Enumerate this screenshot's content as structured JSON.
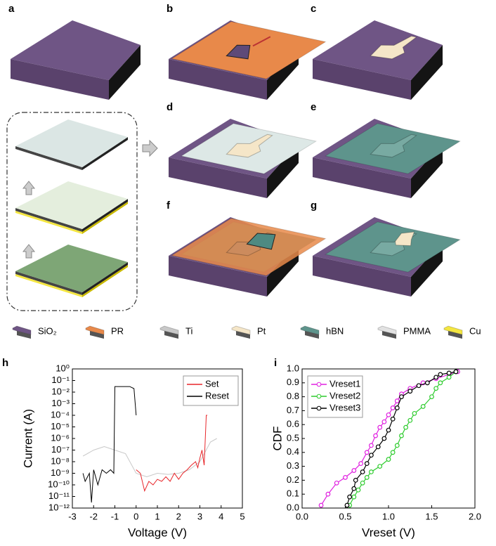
{
  "panels": {
    "labels": [
      "a",
      "b",
      "c",
      "d",
      "e",
      "f",
      "g"
    ]
  },
  "legend": [
    {
      "label": "SiO₂",
      "color": "#6f5585"
    },
    {
      "label": "PR",
      "color": "#e8894a"
    },
    {
      "label": "Ti",
      "color": "#c8c8c8"
    },
    {
      "label": "Pt",
      "color": "#f5e6c8"
    },
    {
      "label": "hBN",
      "color": "#5e948c"
    },
    {
      "label": "PMMA",
      "color": "#e2e2e2"
    },
    {
      "label": "Cu",
      "color": "#f4e640"
    }
  ],
  "chart_data": [
    {
      "type": "line",
      "panel": "h",
      "x_label": "Voltage (V)",
      "y_label": "Current (A)",
      "log_y": true,
      "legend": "upper right",
      "xlim": [
        -3,
        5
      ],
      "xticks": [
        -3,
        -2,
        -1,
        0,
        1,
        2,
        3,
        4,
        5
      ],
      "ylim": [
        1e-12,
        1
      ],
      "yticks": [
        {
          "value": 1e-12,
          "label": "10⁻¹²"
        },
        {
          "value": 1e-11,
          "label": "10⁻¹¹"
        },
        {
          "value": 1e-10,
          "label": "10⁻¹⁰"
        },
        {
          "value": 1e-09,
          "label": "10⁻⁹"
        },
        {
          "value": 1e-08,
          "label": "10⁻⁸"
        },
        {
          "value": 1e-07,
          "label": "10⁻⁷"
        },
        {
          "value": 1e-06,
          "label": "10⁻⁶"
        },
        {
          "value": 1e-05,
          "label": "10⁻⁵"
        },
        {
          "value": 0.0001,
          "label": "10⁻⁴"
        },
        {
          "value": 0.001,
          "label": "10⁻³"
        },
        {
          "value": 0.01,
          "label": "10⁻²"
        },
        {
          "value": 0.1,
          "label": "10⁻¹"
        },
        {
          "value": 1,
          "label": "10⁰"
        }
      ],
      "series": [
        {
          "color": "#c8c8c8",
          "x": [
            -2.5,
            -2,
            -1.5,
            -1,
            -0.5,
            0,
            0.5,
            1,
            1.5,
            2,
            2.5,
            3,
            3.5,
            3.8
          ],
          "values": [
            3e-08,
            1e-07,
            2e-07,
            1e-07,
            5e-08,
            1e-09,
            5e-10,
            1e-09,
            8e-10,
            1e-09,
            2e-09,
            1e-08,
            5e-07,
            1e-06
          ]
        },
        {
          "name": "Set",
          "color": "#e8262a",
          "x": [
            0,
            0.2,
            0.4,
            0.6,
            0.8,
            1,
            1.2,
            1.4,
            1.6,
            1.8,
            2,
            2.2,
            2.4,
            2.6,
            2.8,
            2.9,
            3,
            3.1,
            3.2,
            3.3,
            3.35
          ],
          "values": [
            2e-09,
            1e-09,
            3e-11,
            2e-10,
            1e-10,
            3e-10,
            2e-10,
            5e-10,
            2e-10,
            1e-09,
            3e-10,
            1e-09,
            2e-09,
            5e-09,
            1e-08,
            3e-09,
            2e-08,
            1e-07,
            5e-09,
            0.0001,
            0.0001
          ]
        },
        {
          "name": "Reset",
          "color": "#000000",
          "x": [
            0,
            -0.1,
            -0.3,
            -0.5,
            -0.7,
            -0.9,
            -1,
            -1.05,
            -1.2,
            -1.4,
            -1.6,
            -1.8,
            -2,
            -2.1,
            -2.2,
            -2.4,
            -2.5
          ],
          "values": [
            0.0001,
            0.02,
            0.03,
            0.03,
            0.03,
            0.03,
            0.03,
            1e-09,
            2e-09,
            1e-09,
            2e-09,
            1e-10,
            2e-09,
            3e-12,
            1e-09,
            2e-10,
            1e-09
          ]
        }
      ]
    },
    {
      "type": "line",
      "panel": "i",
      "x_label": "Vreset (V)",
      "y_label": "CDF",
      "markers": true,
      "legend": "upper left",
      "xlim": [
        0,
        2
      ],
      "xticks": [
        {
          "value": 0,
          "label": "0.0"
        },
        {
          "value": 0.5,
          "label": "0.5"
        },
        {
          "value": 1,
          "label": "1.0"
        },
        {
          "value": 1.5,
          "label": "1.5"
        },
        {
          "value": 2,
          "label": "2.0"
        }
      ],
      "ylim": [
        0,
        1
      ],
      "yticks": [
        {
          "value": 0,
          "label": "0.0"
        },
        {
          "value": 0.1,
          "label": "0.1"
        },
        {
          "value": 0.2,
          "label": "0.2"
        },
        {
          "value": 0.3,
          "label": "0.3"
        },
        {
          "value": 0.4,
          "label": "0.4"
        },
        {
          "value": 0.5,
          "label": "0.5"
        },
        {
          "value": 0.6,
          "label": "0.6"
        },
        {
          "value": 0.7,
          "label": "0.7"
        },
        {
          "value": 0.8,
          "label": "0.8"
        },
        {
          "value": 0.9,
          "label": "0.9"
        },
        {
          "value": 1,
          "label": "1.0"
        }
      ],
      "series": [
        {
          "name": "Vreset1",
          "color": "#e020e0",
          "x": [
            0.22,
            0.3,
            0.4,
            0.5,
            0.6,
            0.68,
            0.75,
            0.8,
            0.85,
            0.9,
            0.95,
            1,
            1.05,
            1.1,
            1.15,
            1.25,
            1.4,
            1.55,
            1.7,
            1.8
          ],
          "values": [
            0.02,
            0.1,
            0.18,
            0.22,
            0.27,
            0.32,
            0.4,
            0.45,
            0.52,
            0.58,
            0.62,
            0.67,
            0.72,
            0.77,
            0.82,
            0.86,
            0.9,
            0.93,
            0.96,
            0.98
          ]
        },
        {
          "name": "Vreset2",
          "color": "#2ecc2e",
          "x": [
            0.55,
            0.6,
            0.65,
            0.7,
            0.75,
            0.8,
            0.9,
            1,
            1.05,
            1.1,
            1.15,
            1.2,
            1.25,
            1.3,
            1.4,
            1.5,
            1.55,
            1.6,
            1.7,
            1.78
          ],
          "values": [
            0.02,
            0.08,
            0.13,
            0.18,
            0.22,
            0.26,
            0.3,
            0.35,
            0.4,
            0.45,
            0.52,
            0.58,
            0.63,
            0.68,
            0.73,
            0.8,
            0.86,
            0.9,
            0.94,
            0.98
          ]
        },
        {
          "name": "Vreset3",
          "color": "#000000",
          "x": [
            0.52,
            0.55,
            0.6,
            0.62,
            0.7,
            0.75,
            0.8,
            0.88,
            0.95,
            1,
            1.05,
            1.1,
            1.15,
            1.25,
            1.35,
            1.45,
            1.55,
            1.6,
            1.7,
            1.78
          ],
          "values": [
            0.02,
            0.08,
            0.14,
            0.2,
            0.26,
            0.32,
            0.38,
            0.44,
            0.5,
            0.56,
            0.64,
            0.72,
            0.8,
            0.84,
            0.88,
            0.9,
            0.94,
            0.96,
            0.97,
            0.98
          ]
        }
      ]
    }
  ]
}
